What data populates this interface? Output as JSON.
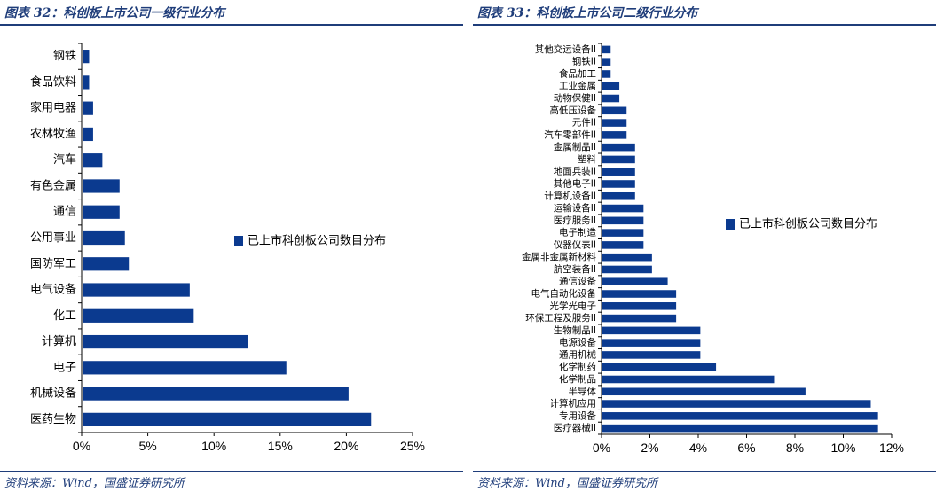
{
  "colors": {
    "bar": "#0b3a8f",
    "rule": "#1f3d7a",
    "title": "#1f3d7a"
  },
  "left": {
    "title": "图表 32：科创板上市公司一级行业分布",
    "source": "资料来源：Wind，国盛证券研究所"
  },
  "right": {
    "title": "图表 33：科创板上市公司二级行业分布",
    "source": "资料来源：Wind，国盛证券研究所"
  },
  "chart_data": [
    {
      "type": "bar",
      "orientation": "horizontal",
      "title": "",
      "legend": "已上市科创板公司数目分布",
      "legend_position": "right-middle",
      "categories": [
        "钢铁",
        "食品饮料",
        "家用电器",
        "农林牧渔",
        "汽车",
        "有色金属",
        "通信",
        "公用事业",
        "国防军工",
        "电气设备",
        "化工",
        "计算机",
        "电子",
        "机械设备",
        "医药生物"
      ],
      "values": [
        0.5,
        0.5,
        0.8,
        0.8,
        1.5,
        2.8,
        2.8,
        3.2,
        3.5,
        8.1,
        8.4,
        12.5,
        15.4,
        20.1,
        21.8
      ],
      "xlim": [
        0,
        25
      ],
      "xticks": [
        "0%",
        "5%",
        "10%",
        "15%",
        "20%",
        "25%"
      ],
      "grid": false
    },
    {
      "type": "bar",
      "orientation": "horizontal",
      "title": "",
      "legend": "已上市科创板公司数目分布",
      "legend_position": "right-middle",
      "categories": [
        "其他交运设备II",
        "钢铁II",
        "食品加工",
        "工业金属",
        "动物保健II",
        "高低压设备",
        "元件II",
        "汽车零部件II",
        "金属制品II",
        "塑料",
        "地面兵装II",
        "其他电子II",
        "计算机设备II",
        "运输设备II",
        "医疗服务II",
        "电子制造",
        "仪器仪表II",
        "金属非金属新材料",
        "航空装备II",
        "通信设备",
        "电气自动化设备",
        "光学光电子",
        "环保工程及服务II",
        "生物制品II",
        "电源设备",
        "通用机械",
        "化学制药",
        "化学制品",
        "半导体",
        "计算机应用",
        "专用设备",
        "医疗器械II"
      ],
      "values": [
        0.34,
        0.34,
        0.34,
        0.7,
        0.7,
        1.0,
        1.0,
        1.0,
        1.35,
        1.35,
        1.35,
        1.35,
        1.35,
        1.7,
        1.7,
        1.7,
        1.7,
        2.05,
        2.05,
        2.7,
        3.05,
        3.05,
        3.05,
        4.05,
        4.05,
        4.05,
        4.7,
        7.1,
        8.4,
        11.1,
        11.4,
        11.4
      ],
      "xlim": [
        0,
        12
      ],
      "xticks": [
        "0%",
        "2%",
        "4%",
        "6%",
        "8%",
        "10%",
        "12%"
      ],
      "grid": false
    }
  ]
}
